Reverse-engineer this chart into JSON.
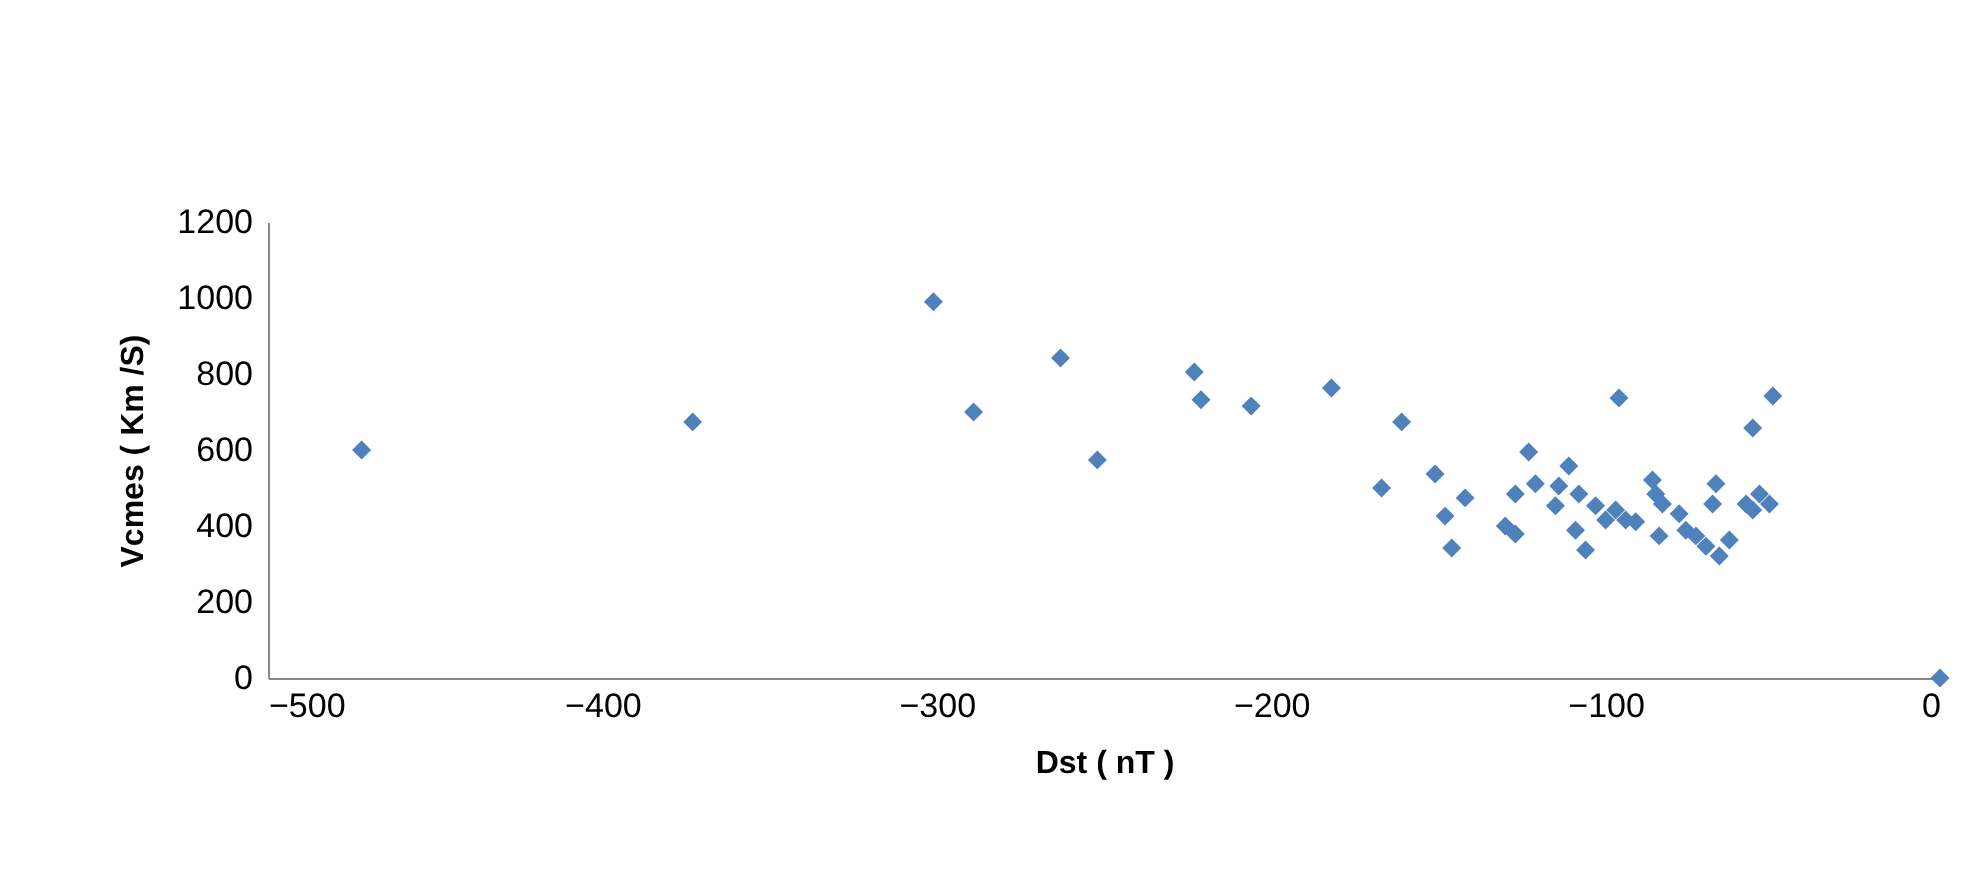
{
  "chart_data": {
    "type": "scatter",
    "xlabel": "Dst ( nT )",
    "ylabel": "Vcmes ( Km /S)",
    "xlim": [
      -500,
      0
    ],
    "xticks": [
      -500,
      -400,
      -300,
      -200,
      -100,
      0
    ],
    "ylim": [
      0,
      1200
    ],
    "yticks": [
      0,
      200,
      400,
      600,
      800,
      {
        "value": 1000,
        "label": "1000"
      },
      {
        "value": 1200,
        "label": "1200"
      }
    ],
    "grid": false,
    "marker": "diamond",
    "series": [
      {
        "color": "#4f81bd",
        "x": [
          -472,
          -373,
          -301,
          -289,
          -263,
          -252,
          -223,
          -221,
          -206,
          -182,
          -161,
          -167,
          -151,
          -142,
          -148,
          -146,
          -96,
          -50,
          -56,
          -123,
          -130,
          -127,
          -127,
          -121,
          -111,
          -115,
          -114,
          -108,
          -109,
          -106,
          -103,
          -100,
          -97,
          -94,
          -91,
          -86,
          -85,
          -83,
          -84,
          -78,
          -76,
          -73,
          -67,
          -68,
          -70,
          -66,
          -63,
          -58,
          -54,
          -51,
          -56,
          0
        ],
        "values": [
          600,
          674,
          990,
          700,
          842,
          574,
          805,
          732,
          716,
          763,
          674,
          500,
          537,
          474,
          426,
          342,
          737,
          742,
          658,
          595,
          400,
          379,
          484,
          511,
          558,
          453,
          505,
          484,
          389,
          337,
          453,
          416,
          442,
          416,
          411,
          521,
          484,
          458,
          374,
          432,
          389,
          374,
          511,
          458,
          347,
          321,
          363,
          458,
          484,
          458,
          442,
          0
        ]
      }
    ]
  }
}
